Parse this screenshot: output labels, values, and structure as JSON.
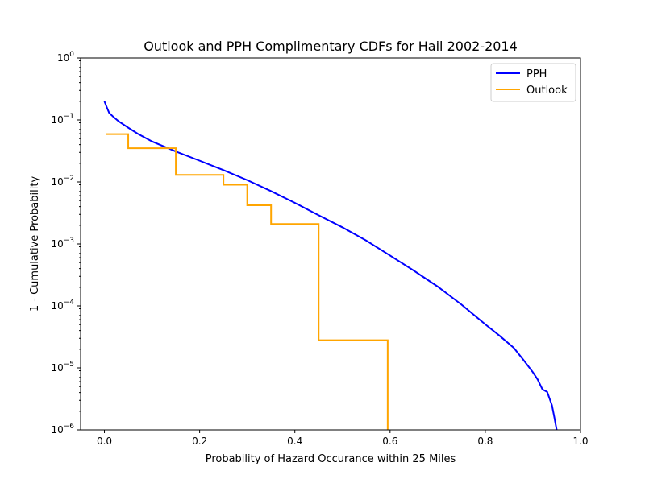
{
  "chart_data": {
    "type": "line",
    "title": "Outlook and PPH Complimentary CDFs for Hail 2002-2014",
    "xlabel": "Probability of Hazard Occurance within 25 Miles",
    "ylabel": "1 - Cumulative Probability",
    "xlim": [
      -0.05,
      1.0
    ],
    "ylim": [
      1e-06,
      1
    ],
    "yscale": "log",
    "grid": false,
    "legend_position": "top-right",
    "x_ticks": [
      {
        "value": 0.0,
        "label": "0.0"
      },
      {
        "value": 0.2,
        "label": "0.2"
      },
      {
        "value": 0.4,
        "label": "0.4"
      },
      {
        "value": 0.6,
        "label": "0.6"
      },
      {
        "value": 0.8,
        "label": "0.8"
      },
      {
        "value": 1.0,
        "label": "1.0"
      }
    ],
    "y_ticks": [
      {
        "value": 1,
        "base": "10",
        "exp": "0"
      },
      {
        "value": 0.1,
        "base": "10",
        "exp": "−1"
      },
      {
        "value": 0.01,
        "base": "10",
        "exp": "−2"
      },
      {
        "value": 0.001,
        "base": "10",
        "exp": "−3"
      },
      {
        "value": 0.0001,
        "base": "10",
        "exp": "−4"
      },
      {
        "value": 1e-05,
        "base": "10",
        "exp": "−5"
      },
      {
        "value": 1e-06,
        "base": "10",
        "exp": "−6"
      }
    ],
    "series": [
      {
        "name": "PPH",
        "color": "#0000ff",
        "step": false,
        "x": [
          0.0,
          0.005,
          0.01,
          0.02,
          0.03,
          0.05,
          0.07,
          0.1,
          0.15,
          0.2,
          0.25,
          0.3,
          0.35,
          0.4,
          0.45,
          0.5,
          0.55,
          0.6,
          0.65,
          0.7,
          0.75,
          0.8,
          0.83,
          0.86,
          0.88,
          0.9,
          0.91,
          0.92,
          0.93,
          0.94,
          0.945,
          0.948,
          0.95
        ],
        "y": [
          0.2,
          0.16,
          0.13,
          0.11,
          0.095,
          0.075,
          0.06,
          0.045,
          0.031,
          0.022,
          0.0155,
          0.0107,
          0.0071,
          0.0046,
          0.0029,
          0.00185,
          0.00113,
          0.00065,
          0.00037,
          0.000205,
          0.000105,
          5.05e-05,
          3.3e-05,
          2.1e-05,
          1.35e-05,
          8.5e-06,
          6.5e-06,
          4.5e-06,
          4.1e-06,
          2.5e-06,
          1.6e-06,
          1.2e-06,
          1e-06
        ]
      },
      {
        "name": "Outlook",
        "color": "#ffa500",
        "step": true,
        "x": [
          0.003,
          0.05,
          0.05,
          0.15,
          0.15,
          0.25,
          0.25,
          0.3,
          0.3,
          0.35,
          0.35,
          0.45,
          0.45,
          0.595,
          0.595
        ],
        "y": [
          0.059,
          0.059,
          0.035,
          0.035,
          0.013,
          0.013,
          0.009,
          0.009,
          0.0042,
          0.0042,
          0.0021,
          0.0021,
          2.8e-05,
          2.8e-05,
          1e-06
        ]
      }
    ]
  }
}
